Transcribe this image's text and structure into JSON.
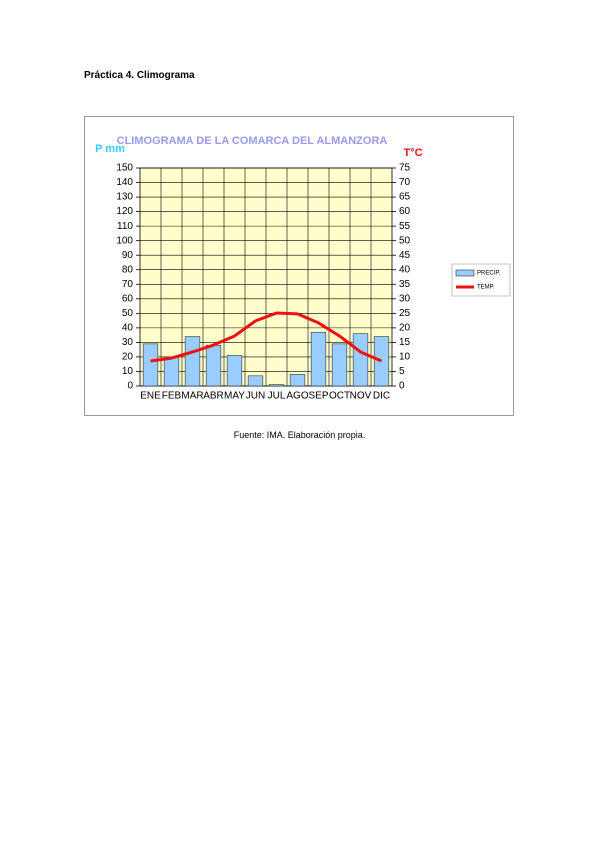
{
  "heading": "Práctica 4. Climograma",
  "chart_data": {
    "type": "combo",
    "title": "CLIMOGRAMA DE LA COMARCA DEL ALMANZORA",
    "ylabel": "P mm",
    "y2label": "T°C",
    "categories": [
      "ENE",
      "FEB",
      "MAR",
      "ABR",
      "MAY",
      "JUN",
      "JUL",
      "AGO",
      "SEP",
      "OCT",
      "NOV",
      "DIC"
    ],
    "series": [
      {
        "name": "PRECIP.",
        "type": "bar",
        "color": "#99ccff",
        "values": [
          29,
          20,
          34,
          28,
          21,
          7,
          1,
          8,
          37,
          29,
          36,
          34
        ]
      },
      {
        "name": "TEMP.",
        "type": "line",
        "color": "#ee1111",
        "axis": "y2",
        "values": [
          8.6,
          9.6,
          11.7,
          14.1,
          17.2,
          22.4,
          25.1,
          24.8,
          21.7,
          17.2,
          11.7,
          8.6
        ]
      }
    ],
    "ylim": [
      0,
      150
    ],
    "yticks": [
      0,
      10,
      20,
      30,
      40,
      50,
      60,
      70,
      80,
      90,
      100,
      110,
      120,
      130,
      140,
      150
    ],
    "y2lim": [
      0,
      75
    ],
    "y2ticks": [
      0,
      5,
      10,
      15,
      20,
      25,
      30,
      35,
      40,
      45,
      50,
      55,
      60,
      65,
      70,
      75
    ],
    "grid": true,
    "legend": "right",
    "plot_background": "#ffffcc"
  },
  "caption": "Fuente: IMA. Elaboración propia."
}
